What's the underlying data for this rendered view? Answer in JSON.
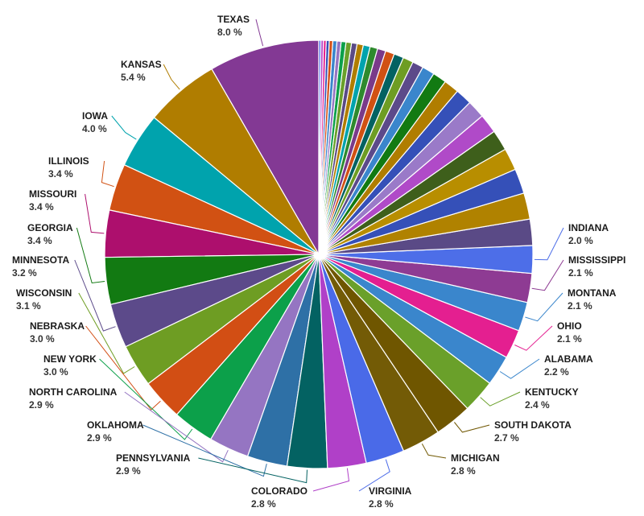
{
  "chart_data": {
    "type": "pie",
    "slices": [
      {
        "label": "TEXAS",
        "value": 8.0,
        "value_text": "8.0 %",
        "color": "#833994"
      },
      {
        "label": "KANSAS",
        "value": 5.4,
        "value_text": "5.4 %",
        "color": "#b07d00"
      },
      {
        "label": "IOWA",
        "value": 4.0,
        "value_text": "4.0 %",
        "color": "#00a3ad"
      },
      {
        "label": "ILLINOIS",
        "value": 3.4,
        "value_text": "3.4 %",
        "color": "#d15113"
      },
      {
        "label": "MISSOURI",
        "value": 3.4,
        "value_text": "3.4 %",
        "color": "#ad0f6d"
      },
      {
        "label": "GEORGIA",
        "value": 3.4,
        "value_text": "3.4 %",
        "color": "#127a12"
      },
      {
        "label": "MINNESOTA",
        "value": 3.2,
        "value_text": "3.2 %",
        "color": "#5c4a8a"
      },
      {
        "label": "WISCONSIN",
        "value": 3.1,
        "value_text": "3.1 %",
        "color": "#6e9d23"
      },
      {
        "label": "NEBRASKA",
        "value": 3.0,
        "value_text": "3.0 %",
        "color": "#d24e14"
      },
      {
        "label": "NEW YORK",
        "value": 3.0,
        "value_text": "3.0 %",
        "color": "#0ca04a"
      },
      {
        "label": "NORTH CAROLINA",
        "value": 2.9,
        "value_text": "2.9 %",
        "color": "#9575c2"
      },
      {
        "label": "OKLAHOMA",
        "value": 2.9,
        "value_text": "2.9 %",
        "color": "#2e70a6"
      },
      {
        "label": "PENNSYLVANIA",
        "value": 2.9,
        "value_text": "2.9 %",
        "color": "#036262"
      },
      {
        "label": "COLORADO",
        "value": 2.8,
        "value_text": "2.8 %",
        "color": "#b040c8"
      },
      {
        "label": "VIRGINIA",
        "value": 2.8,
        "value_text": "2.8 %",
        "color": "#4a6ae8"
      },
      {
        "label": "MICHIGAN",
        "value": 2.8,
        "value_text": "2.8 %",
        "color": "#735b06"
      },
      {
        "label": "SOUTH DAKOTA",
        "value": 2.7,
        "value_text": "2.7 %",
        "color": "#6f5600"
      },
      {
        "label": "KENTUCKY",
        "value": 2.4,
        "value_text": "2.4 %",
        "color": "#6aa02a"
      },
      {
        "label": "ALABAMA",
        "value": 2.2,
        "value_text": "2.2 %",
        "color": "#3a86cc"
      },
      {
        "label": "OHIO",
        "value": 2.1,
        "value_text": "2.1 %",
        "color": "#e41f90"
      },
      {
        "label": "MONTANA",
        "value": 2.1,
        "value_text": "2.1 %",
        "color": "#3a86cc"
      },
      {
        "label": "MISSISSIPPI",
        "value": 2.1,
        "value_text": "2.1 %",
        "color": "#8e3b93"
      },
      {
        "label": "INDIANA",
        "value": 2.0,
        "value_text": "2.0 %",
        "color": "#4d6ee8"
      },
      {
        "label": "",
        "value": 1.9,
        "value_text": "",
        "color": "#5a4a86"
      },
      {
        "label": "",
        "value": 1.9,
        "value_text": "",
        "color": "#b08200"
      },
      {
        "label": "",
        "value": 1.8,
        "value_text": "",
        "color": "#3550b8"
      },
      {
        "label": "",
        "value": 1.6,
        "value_text": "",
        "color": "#b88e00"
      },
      {
        "label": "",
        "value": 1.5,
        "value_text": "",
        "color": "#3e5f1b"
      },
      {
        "label": "",
        "value": 1.4,
        "value_text": "",
        "color": "#b04ac8"
      },
      {
        "label": "",
        "value": 1.3,
        "value_text": "",
        "color": "#9a7ac8"
      },
      {
        "label": "",
        "value": 1.2,
        "value_text": "",
        "color": "#3550b8"
      },
      {
        "label": "",
        "value": 1.1,
        "value_text": "",
        "color": "#b07d00"
      },
      {
        "label": "",
        "value": 1.0,
        "value_text": "",
        "color": "#127a12"
      },
      {
        "label": "",
        "value": 0.9,
        "value_text": "",
        "color": "#3a86cc"
      },
      {
        "label": "",
        "value": 0.8,
        "value_text": "",
        "color": "#5c4a8a"
      },
      {
        "label": "",
        "value": 0.75,
        "value_text": "",
        "color": "#6e9d23"
      },
      {
        "label": "",
        "value": 0.7,
        "value_text": "",
        "color": "#036262"
      },
      {
        "label": "",
        "value": 0.65,
        "value_text": "",
        "color": "#d15113"
      },
      {
        "label": "",
        "value": 0.6,
        "value_text": "",
        "color": "#7a3a8a"
      },
      {
        "label": "",
        "value": 0.55,
        "value_text": "",
        "color": "#2e8a2e"
      },
      {
        "label": "",
        "value": 0.5,
        "value_text": "",
        "color": "#00a3ad"
      },
      {
        "label": "",
        "value": 0.45,
        "value_text": "",
        "color": "#b07d00"
      },
      {
        "label": "",
        "value": 0.4,
        "value_text": "",
        "color": "#5a4a86"
      },
      {
        "label": "",
        "value": 0.4,
        "value_text": "",
        "color": "#6aa02a"
      },
      {
        "label": "",
        "value": 0.35,
        "value_text": "",
        "color": "#0ca04a"
      },
      {
        "label": "",
        "value": 0.3,
        "value_text": "",
        "color": "#9575c2"
      },
      {
        "label": "",
        "value": 0.3,
        "value_text": "",
        "color": "#3a86cc"
      },
      {
        "label": "",
        "value": 0.25,
        "value_text": "",
        "color": "#d24e14"
      },
      {
        "label": "",
        "value": 0.22,
        "value_text": "",
        "color": "#3550b8"
      },
      {
        "label": "",
        "value": 0.2,
        "value_text": "",
        "color": "#e41f90"
      },
      {
        "label": "",
        "value": 0.18,
        "value_text": "",
        "color": "#b040c8"
      },
      {
        "label": "",
        "value": 0.15,
        "value_text": "",
        "color": "#4a6ae8"
      }
    ]
  }
}
